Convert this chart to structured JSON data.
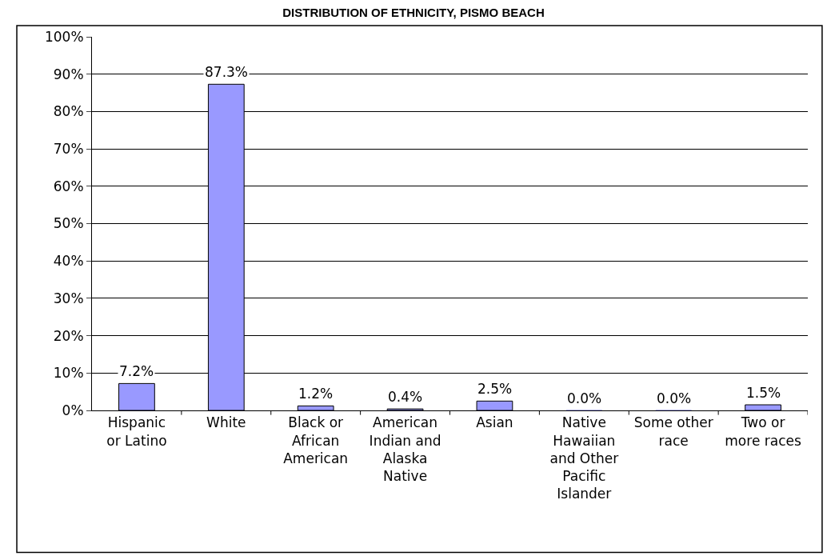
{
  "chart_data": {
    "type": "bar",
    "title": "DISTRIBUTION OF ETHNICITY, PISMO BEACH",
    "categories": [
      "Hispanic or Latino",
      "White",
      "Black or African American",
      "American Indian and Alaska Native",
      "Asian",
      "Native Hawaiian and Other Pacific Islander",
      "Some other race",
      "Two or more races"
    ],
    "values": [
      7.2,
      87.3,
      1.2,
      0.4,
      2.5,
      0.0,
      0.0,
      1.5
    ],
    "value_labels": [
      "7.2%",
      "87.3%",
      "1.2%",
      "0.4%",
      "2.5%",
      "0.0%",
      "0.0%",
      "1.5%"
    ],
    "color": "#9999ff",
    "ylim": [
      0,
      100
    ],
    "yticks": [
      {
        "value": 0,
        "label": "0%"
      },
      {
        "value": 10,
        "label": "10%"
      },
      {
        "value": 20,
        "label": "20%"
      },
      {
        "value": 30,
        "label": "30%"
      },
      {
        "value": 40,
        "label": "40%"
      },
      {
        "value": 50,
        "label": "50%"
      },
      {
        "value": 60,
        "label": "60%"
      },
      {
        "value": 70,
        "label": "70%"
      },
      {
        "value": 80,
        "label": "80%"
      },
      {
        "value": 90,
        "label": "90%"
      },
      {
        "value": 100,
        "label": "100%"
      }
    ],
    "grid": "y",
    "legend": false
  }
}
